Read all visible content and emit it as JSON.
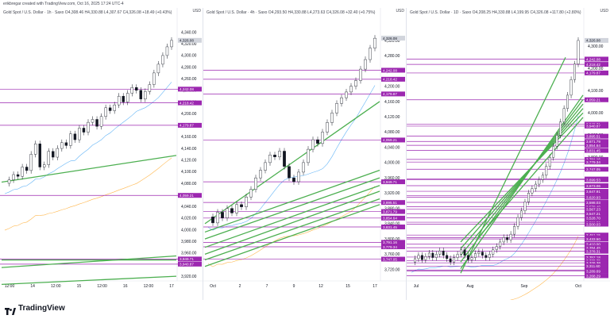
{
  "credit": "erikbregar created with TradingView.com, Oct 16, 2025 17:24 UTC-4",
  "brand": "TradingView",
  "currency": "USD",
  "colors": {
    "candle": "#131722",
    "level": "#9c27b0",
    "channel": "#4caf50",
    "ma_fast": "#64b5f6",
    "ma_slow": "#ffb74d",
    "price_label": "#9e9e9e"
  },
  "panels": [
    {
      "title": "Gold Spot / U.S. Dollar · 1h · Saxo  O4,308.46  H4,330.88  L4,307.67  C4,326.08  +18.49 (+0.43%)",
      "ymin": 3912,
      "ymax": 4360,
      "y_ticks": [
        "4,340.00",
        "4,320.00",
        "4,300.00",
        "4,280.00",
        "4,260.00",
        "4,240.00",
        "4,220.00",
        "4,200.00",
        "4,180.00",
        "4,160.00",
        "4,140.00",
        "4,120.00",
        "4,100.00",
        "4,080.00",
        "4,060.00",
        "4,040.00",
        "4,020.00",
        "4,000.00",
        "3,980.00",
        "3,960.00",
        "3,940.00",
        "3,920.00"
      ],
      "x_ticks": [
        "12:00",
        "14",
        "12:00",
        "15",
        "12:00",
        "16",
        "12:00",
        "17"
      ],
      "levels": [
        "4,242.08",
        "4,218.42",
        "4,179.87",
        "4,059.21",
        "3,949.71",
        "3,940.87"
      ],
      "price": "4,326.08",
      "channels": [
        [
          0,
          3948,
          1,
          3948
        ],
        [
          0,
          4082,
          1,
          4128
        ],
        [
          0,
          3935,
          1,
          3955
        ],
        [
          0,
          3906,
          1,
          3920
        ]
      ],
      "path": [
        4080,
        4086,
        4095,
        4092,
        4108,
        4102,
        4130,
        4148,
        4108,
        4112,
        4135,
        4125,
        4140,
        4150,
        4145,
        4165,
        4155,
        4175,
        4168,
        4185,
        4190,
        4178,
        4195,
        4210,
        4205,
        4215,
        4230,
        4220,
        4235,
        4245,
        4240,
        4225,
        4238,
        4250,
        4270,
        4285,
        4300,
        4315,
        4326
      ]
    },
    {
      "title": "Gold Spot / U.S. Dollar · 4h · Saxo  O4,293.50  H4,330.88  L4,273.63  C4,326.08  +32.40 (+0.75%)",
      "ymin": 3690,
      "ymax": 4372,
      "y_ticks": [
        "4,360.00",
        "4,320.00",
        "4,280.00",
        "4,240.00",
        "4,200.00",
        "4,160.00",
        "4,120.00",
        "4,080.00",
        "4,040.00",
        "4,000.00",
        "3,960.00",
        "3,920.00",
        "3,880.00",
        "3,840.00",
        "3,800.00",
        "3,760.00",
        "3,720.00"
      ],
      "x_ticks": [
        "Oct",
        "2",
        "7",
        "9",
        "12",
        "15",
        "17"
      ],
      "levels": [
        "4,242.08",
        "4,218.42",
        "4,179.87",
        "4,059.21",
        "3,949.71",
        "3,895.51",
        "3,871.79",
        "3,854.64",
        "3,831.45",
        "3,791.16",
        "3,779.34",
        "3,747.05"
      ],
      "price": "4,326.08",
      "channels": [
        [
          0,
          3840,
          1,
          4160
        ],
        [
          0,
          3818,
          1,
          3980
        ],
        [
          0,
          3800,
          1,
          3960
        ],
        [
          0,
          3778,
          1,
          3940
        ],
        [
          0,
          3760,
          1,
          3925
        ],
        [
          0,
          3745,
          1,
          3905
        ],
        [
          0,
          3728,
          1,
          3890
        ]
      ],
      "path": [
        3858,
        3842,
        3870,
        3855,
        3880,
        3868,
        3890,
        3884,
        3910,
        3930,
        3960,
        3980,
        4000,
        4020,
        4015,
        4030,
        3990,
        3960,
        3950,
        3975,
        4000,
        4035,
        4060,
        4050,
        4080,
        4105,
        4130,
        4155,
        4170,
        4185,
        4200,
        4215,
        4245,
        4270,
        4300,
        4326
      ]
    },
    {
      "title": "Gold Spot / U.S. Dollar · 1D · Saxo  O4,208.25  H4,330.88  L4,199.95  C4,326.08  +117.80 (+2.80%)",
      "ymin": 3245,
      "ymax": 4415,
      "y_ticks": [
        "4,400.00",
        "4,300.00",
        "4,200.00",
        "4,100.00",
        "4,000.00",
        "3,900.00",
        "3,800.00",
        "3,700.00",
        "3,600.00",
        "3,500.00",
        "3,400.00",
        "3,300.00",
        "3,200.00"
      ],
      "x_ticks": [
        "Jul",
        "Aug",
        "Sep",
        "Oct"
      ],
      "levels": [
        "4,242.08",
        "4,218.42",
        "4,179.87",
        "4,059.21",
        "3,949.71",
        "3,940.87",
        "3,895.51",
        "3,871.79",
        "3,854.64",
        "3,831.45",
        "3,791.16",
        "3,779.34",
        "3,747.05",
        "3,703.00",
        "3,699.53",
        "3,673.06",
        "3,647.91",
        "3,628.31",
        "3,620.93",
        "3,598.03",
        "3,578.49",
        "3,567.23",
        "3,547.21",
        "3,528.70",
        "3,508.70",
        "3,500.03",
        "3,451.15",
        "3,438.93",
        "3,433.50",
        "3,410.00",
        "3,394.45",
        "3,378.31",
        "3,352.18",
        "3,336.25",
        "3,326.38",
        "3,311.60",
        "3,293.99",
        "3,289.69",
        "3,268.29"
      ],
      "price": "4,326.08",
      "channels": [
        [
          0.3,
          3280,
          0.9,
          4250
        ],
        [
          0.3,
          3300,
          1,
          4080
        ],
        [
          0.3,
          3330,
          1,
          4060
        ],
        [
          0.3,
          3360,
          1,
          4040
        ],
        [
          0.3,
          3390,
          1,
          4020
        ],
        [
          0.3,
          3420,
          1,
          4000
        ],
        [
          0.4,
          3440,
          1,
          3980
        ]
      ],
      "path": [
        3330,
        3345,
        3360,
        3340,
        3355,
        3370,
        3350,
        3365,
        3380,
        3360,
        3345,
        3330,
        3350,
        3365,
        3385,
        3360,
        3340,
        3350,
        3368,
        3375,
        3360,
        3350,
        3365,
        3385,
        3400,
        3420,
        3440,
        3430,
        3455,
        3490,
        3530,
        3560,
        3600,
        3640,
        3660,
        3680,
        3700,
        3720,
        3760,
        3800,
        3850,
        3900,
        3960,
        4020,
        4080,
        4150,
        4220,
        4326
      ]
    }
  ]
}
